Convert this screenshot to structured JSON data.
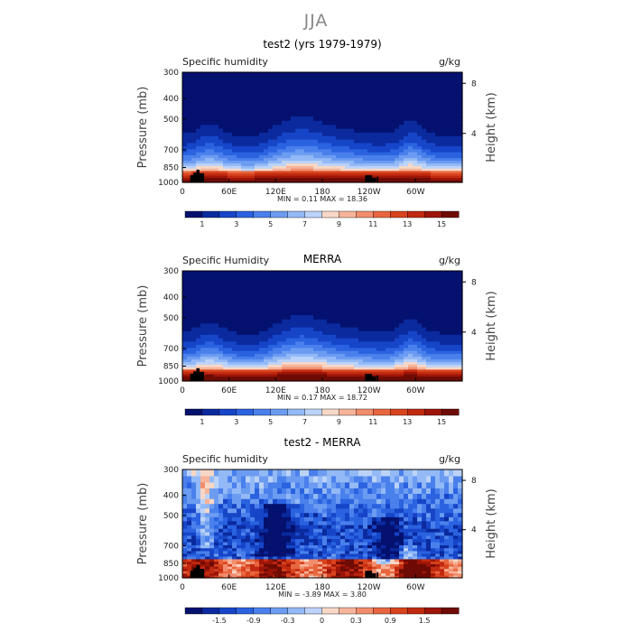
{
  "title": "JJA",
  "chart_data": [
    {
      "type": "heatmap",
      "title": "test2 (yrs 1979-1979)",
      "variable_label": "Specific humidity",
      "units": "g/kg",
      "ylabel": "Pressure (mb)",
      "y2label": "Height (km)",
      "yticks": [
        "300",
        "400",
        "500",
        "700",
        "850",
        "1000"
      ],
      "y2ticks": [
        "8",
        "4"
      ],
      "xticks": [
        "0",
        "60E",
        "120E",
        "180",
        "120W",
        "60W"
      ],
      "stats": "MIN =     0.11   MAX =   18.36",
      "colorbar": {
        "labels": [
          "1",
          "3",
          "5",
          "7",
          "9",
          "11",
          "13",
          "15"
        ],
        "range": [
          0,
          16
        ],
        "levels": 16
      },
      "field": {
        "kind": "absolute",
        "surface_q": 15.5,
        "maxima_lon": [
          30,
          140,
          300
        ]
      }
    },
    {
      "type": "heatmap",
      "title": "MERRA",
      "variable_label": "Specific Humidity",
      "units": "g/kg",
      "ylabel": "Pressure (mb)",
      "y2label": "Height (km)",
      "yticks": [
        "300",
        "400",
        "500",
        "700",
        "850",
        "1000"
      ],
      "y2ticks": [
        "8",
        "4"
      ],
      "xticks": [
        "0",
        "60E",
        "120E",
        "180",
        "120W",
        "60W"
      ],
      "stats": "MIN =     0.17   MAX =   18.72",
      "colorbar": {
        "labels": [
          "1",
          "3",
          "5",
          "7",
          "9",
          "11",
          "13",
          "15"
        ],
        "range": [
          0,
          16
        ],
        "levels": 16
      },
      "field": {
        "kind": "absolute",
        "surface_q": 16.0,
        "maxima_lon": [
          30,
          140,
          300
        ]
      }
    },
    {
      "type": "heatmap",
      "title": "test2 - MERRA",
      "variable_label": "Specific humidity",
      "units": "g/kg",
      "ylabel": "Pressure (mb)",
      "y2label": "Height (km)",
      "yticks": [
        "300",
        "400",
        "500",
        "700",
        "850",
        "1000"
      ],
      "y2ticks": [
        "8",
        "4"
      ],
      "xticks": [
        "0",
        "60E",
        "120E",
        "180",
        "120W",
        "60W"
      ],
      "stats": "MIN =    -3.89   MAX =    3.80",
      "colorbar": {
        "labels": [
          "-1.5",
          "-0.9",
          "-0.3",
          "0",
          "0.3",
          "0.9",
          "1.5"
        ],
        "range": [
          -2,
          2
        ],
        "levels": 16
      },
      "field": {
        "kind": "difference"
      }
    }
  ]
}
